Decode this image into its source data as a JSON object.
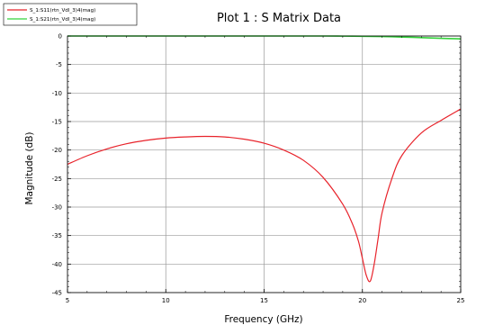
{
  "chart_data": {
    "type": "line",
    "title": "Plot 1 : S Matrix Data",
    "xlabel": "Frequency (GHz)",
    "ylabel": "Magnitude (dB)",
    "xlim": [
      5,
      25
    ],
    "ylim": [
      -45,
      0
    ],
    "xticks": [
      5,
      10,
      15,
      20,
      25
    ],
    "yticks": [
      0,
      -5,
      -10,
      -15,
      -20,
      -25,
      -30,
      -35,
      -40,
      -45
    ],
    "grid": true,
    "legend_position": "top-left",
    "series": [
      {
        "name": "S_1:S11(rtn_Vdl_3)4(mag)",
        "color": "#e8232b",
        "x": [
          5,
          6,
          7,
          8,
          9,
          10,
          11,
          12,
          13,
          14,
          15,
          16,
          17,
          18,
          19,
          19.5,
          19.8,
          20.0,
          20.2,
          20.4,
          20.6,
          20.8,
          21.0,
          21.5,
          22,
          23,
          24,
          25
        ],
        "y": [
          -22.5,
          -21.0,
          -19.8,
          -18.9,
          -18.3,
          -17.9,
          -17.7,
          -17.6,
          -17.7,
          -18.1,
          -18.8,
          -20.0,
          -21.8,
          -24.8,
          -29.5,
          -33.0,
          -36.0,
          -39.0,
          -42.0,
          -43.0,
          -40.0,
          -35.5,
          -31.0,
          -25.0,
          -21.0,
          -17.0,
          -14.8,
          -12.8
        ]
      },
      {
        "name": "S_1:S21(rtn_Vdl_3)4(mag)",
        "color": "#35d23c",
        "x": [
          5,
          10,
          15,
          18,
          19,
          20,
          21,
          22,
          23,
          24,
          25
        ],
        "y": [
          0,
          0,
          0,
          0,
          -0.02,
          -0.05,
          -0.1,
          -0.18,
          -0.28,
          -0.4,
          -0.5
        ]
      }
    ]
  }
}
